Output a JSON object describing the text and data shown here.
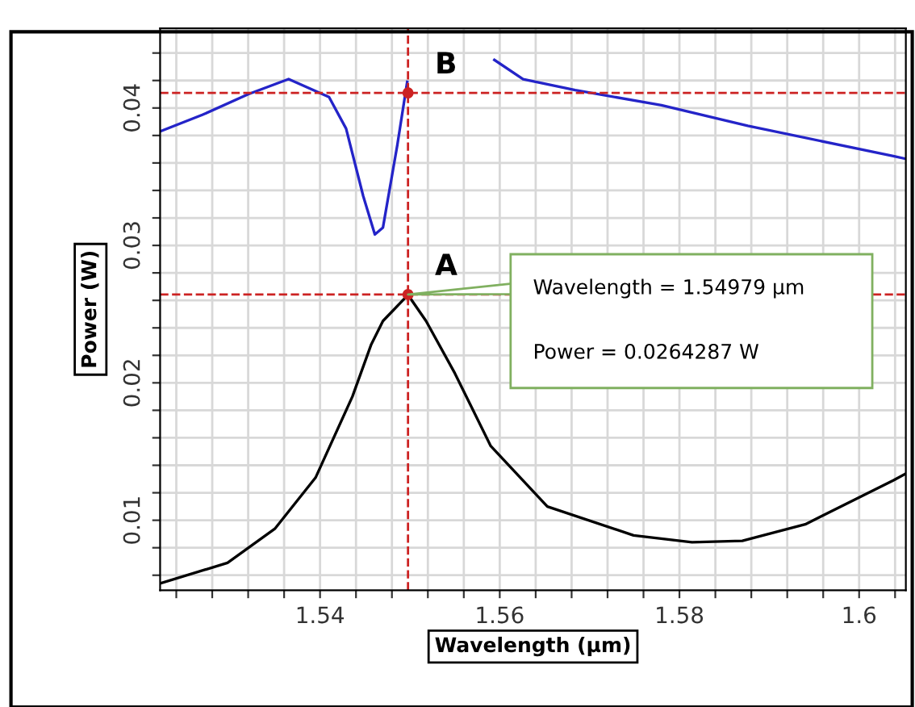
{
  "chart_data": {
    "type": "line",
    "xlabel": "Wavelength (µm)",
    "ylabel": "Power (W)",
    "xlim": [
      1.5222,
      1.6052
    ],
    "ylim": [
      0.0049,
      0.0458
    ],
    "xticks": [
      {
        "value": 1.524,
        "label": null
      },
      {
        "value": 1.528,
        "label": null
      },
      {
        "value": 1.532,
        "label": null
      },
      {
        "value": 1.536,
        "label": null
      },
      1.54,
      {
        "value": 1.544,
        "label": null
      },
      {
        "value": 1.548,
        "label": null
      },
      {
        "value": 1.552,
        "label": null
      },
      {
        "value": 1.556,
        "label": null
      },
      1.56,
      {
        "value": 1.564,
        "label": null
      },
      {
        "value": 1.568,
        "label": null
      },
      {
        "value": 1.572,
        "label": null
      },
      {
        "value": 1.576,
        "label": null
      },
      1.58,
      {
        "value": 1.584,
        "label": null
      },
      {
        "value": 1.588,
        "label": null
      },
      {
        "value": 1.592,
        "label": null
      },
      {
        "value": 1.596,
        "label": null
      },
      1.6,
      {
        "value": 1.604,
        "label": null
      }
    ],
    "yticks": [
      {
        "value": 0.006,
        "label": null
      },
      {
        "value": 0.008,
        "label": null
      },
      0.01,
      {
        "value": 0.012,
        "label": null
      },
      {
        "value": 0.014,
        "label": null
      },
      {
        "value": 0.016,
        "label": null
      },
      {
        "value": 0.018,
        "label": null
      },
      0.02,
      {
        "value": 0.022,
        "label": null
      },
      {
        "value": 0.024,
        "label": null
      },
      {
        "value": 0.026,
        "label": null
      },
      {
        "value": 0.028,
        "label": null
      },
      0.03,
      {
        "value": 0.032,
        "label": null
      },
      {
        "value": 0.034,
        "label": null
      },
      {
        "value": 0.036,
        "label": null
      },
      {
        "value": 0.038,
        "label": null
      },
      0.04,
      {
        "value": 0.042,
        "label": null
      },
      {
        "value": 0.044,
        "label": null
      }
    ],
    "grid": true,
    "line_style": "solid",
    "series": [
      {
        "color": "#000000",
        "x": [
          1.5222,
          1.5297,
          1.535,
          1.5395,
          1.5436,
          1.5457,
          1.547,
          1.54979,
          1.5518,
          1.555,
          1.559,
          1.5653,
          1.5749,
          1.5814,
          1.587,
          1.594,
          1.6038,
          1.6052
        ],
        "values": [
          0.0054,
          0.0069,
          0.0094,
          0.0131,
          0.019,
          0.0228,
          0.0245,
          0.0264,
          0.0245,
          0.0207,
          0.0154,
          0.011,
          0.0089,
          0.0084,
          0.0085,
          0.0097,
          0.0129,
          0.0134
        ]
      },
      {
        "color": "#2424c8",
        "x": [
          1.5222,
          1.5269,
          1.532,
          1.5365,
          1.541,
          1.5429,
          1.5448,
          1.5461,
          1.547,
          1.5486,
          1.5497,
          1.5506,
          1.553,
          1.5562,
          1.5594,
          1.5626,
          1.5684,
          1.578,
          1.5876,
          1.6038,
          1.6052
        ],
        "values": [
          0.0383,
          0.0395,
          0.041,
          0.0421,
          0.0408,
          0.0385,
          0.0336,
          0.0308,
          0.0313,
          0.0373,
          0.0419,
          null,
          null,
          null,
          0.0435,
          0.0421,
          0.0413,
          0.0402,
          0.0387,
          0.0365,
          0.0363
        ]
      }
    ],
    "ref_lines": [
      {
        "axis": "x",
        "value": 1.54979,
        "color": "#cc2222",
        "line_style": "dashed"
      },
      {
        "axis": "y",
        "value": 0.0264287,
        "color": "#cc2222",
        "line_style": "dashed"
      },
      {
        "axis": "y",
        "value": 0.0411,
        "color": "#cc2222",
        "line_style": "dashed"
      }
    ],
    "annotations": [
      {
        "text": "A",
        "x": 1.54979,
        "y": 0.0264287
      },
      {
        "text": "B",
        "x": 1.54979,
        "y": 0.0411
      },
      "Wavelength = 1.54979 µm",
      "Power = 0.0264287 W"
    ]
  }
}
